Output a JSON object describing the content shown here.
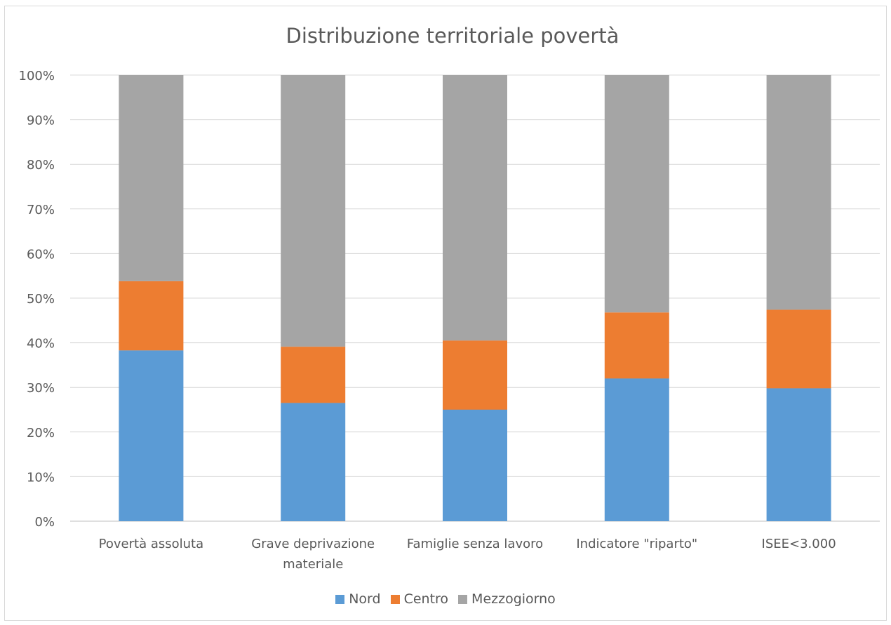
{
  "chart_data": {
    "type": "bar",
    "stacked": true,
    "title": "Distribuzione territoriale povertà",
    "categories": [
      [
        "Povertà assoluta"
      ],
      [
        "Grave deprivazione",
        "materiale"
      ],
      [
        "Famiglie senza lavoro"
      ],
      [
        "Indicatore \"riparto\""
      ],
      [
        "ISEE<3.000"
      ]
    ],
    "series": [
      {
        "name": "Nord",
        "color": "#5b9bd5",
        "values": [
          0.383,
          0.265,
          0.25,
          0.32,
          0.298
        ]
      },
      {
        "name": "Centro",
        "color": "#ed7d31",
        "values": [
          0.155,
          0.126,
          0.155,
          0.148,
          0.176
        ]
      },
      {
        "name": "Mezzogiorno",
        "color": "#a5a5a5",
        "values": [
          0.462,
          0.609,
          0.595,
          0.532,
          0.526
        ]
      }
    ],
    "ylim": [
      0,
      1
    ],
    "yticks": [
      "0%",
      "10%",
      "20%",
      "30%",
      "40%",
      "50%",
      "60%",
      "70%",
      "80%",
      "90%",
      "100%"
    ],
    "grid": true,
    "legend_position": "bottom"
  }
}
